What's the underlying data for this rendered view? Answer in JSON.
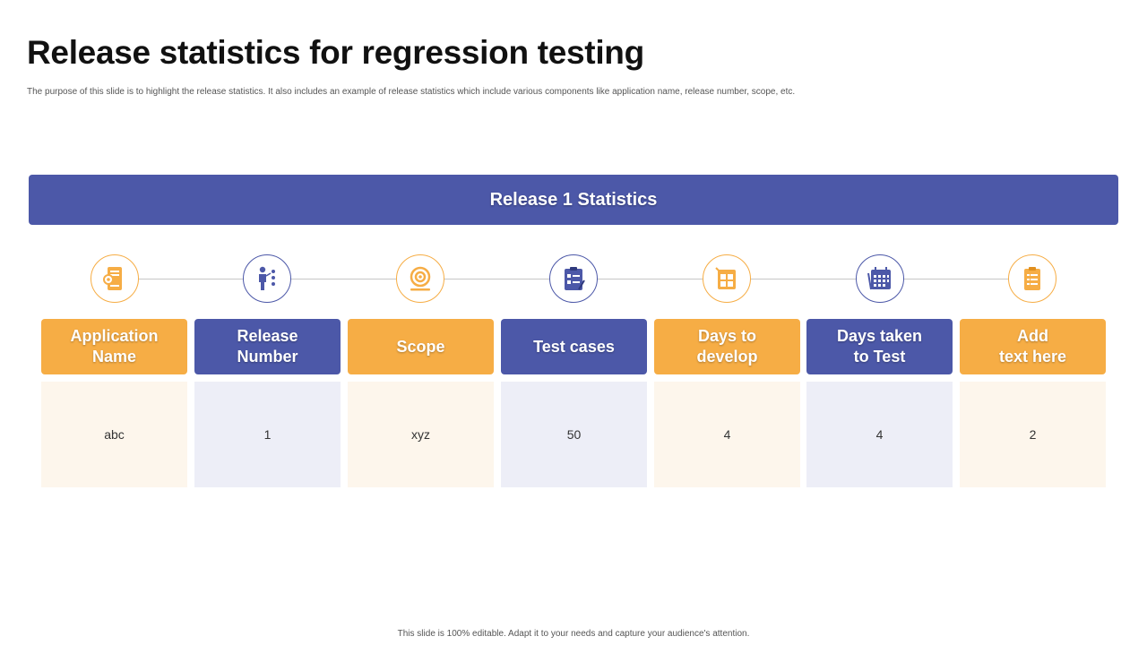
{
  "title": "Release statistics for regression testing",
  "subtitle": "The purpose of this slide is to highlight the release statistics. It also includes an example of release statistics which include various components like application name, release number, scope, etc.",
  "banner": "Release 1 Statistics",
  "colors": {
    "accent_orange": "#f6ad45",
    "accent_blue": "#4c58a8"
  },
  "columns": [
    {
      "icon": "application-settings-icon",
      "header": "Application\nName",
      "value": "abc",
      "color": "orange"
    },
    {
      "icon": "person-numbers-icon",
      "header": "Release\nNumber",
      "value": "1",
      "color": "blue"
    },
    {
      "icon": "target-scope-icon",
      "header": "Scope",
      "value": "xyz",
      "color": "orange"
    },
    {
      "icon": "clipboard-checklist-icon",
      "header": "Test cases",
      "value": "50",
      "color": "blue"
    },
    {
      "icon": "calendar-develop-icon",
      "header": "Days to\ndevelop",
      "value": "4",
      "color": "orange"
    },
    {
      "icon": "calendar-test-icon",
      "header": "Days taken\nto Test",
      "value": "4",
      "color": "blue"
    },
    {
      "icon": "notepad-list-icon",
      "header": "Add\ntext here",
      "value": "2",
      "color": "orange"
    }
  ],
  "footer": "This slide is 100% editable. Adapt it to your needs and capture your audience's attention."
}
